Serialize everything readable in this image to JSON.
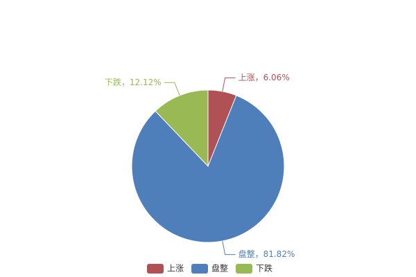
{
  "chart_data": {
    "type": "pie",
    "categories": [
      "上涨",
      "盘整",
      "下跌"
    ],
    "values": [
      6.06,
      81.82,
      12.12
    ],
    "value_labels": [
      "上涨，6.06%",
      "盘整，81.82%",
      "下跌，12.12%"
    ],
    "colors": [
      "#b05155",
      "#4e7fbb",
      "#98b954"
    ],
    "legend": "bottom"
  }
}
